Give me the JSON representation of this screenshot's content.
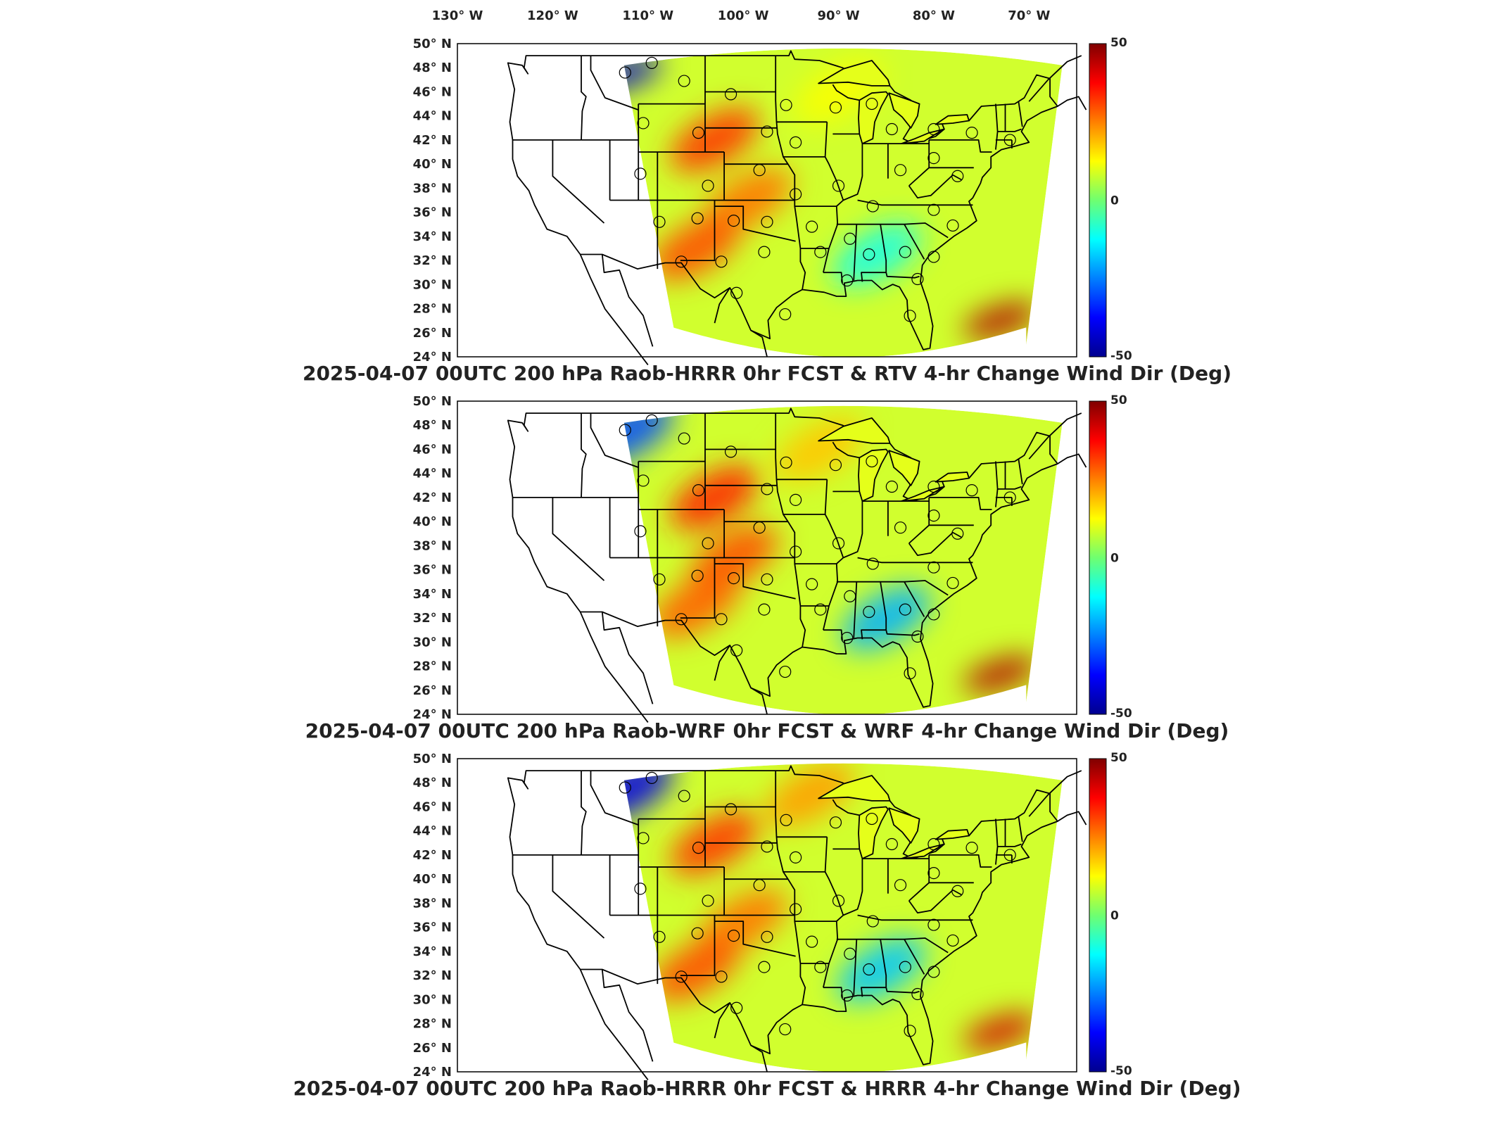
{
  "figure": {
    "lon_labels": [
      "130",
      "120",
      "110",
      "100",
      "90",
      "80",
      "70"
    ],
    "lon_suffix": "W",
    "lat_suffix": "N",
    "degree_symbol": "°"
  },
  "chart_data": [
    {
      "type": "heatmap",
      "title": "2025-04-07 00UTC 200 hPa Raob-HRRR 0hr FCST & RTV 4-hr Change Wind Dir (Deg)",
      "xlabel": "",
      "ylabel": "",
      "x_ticks": [
        "130° W",
        "120° W",
        "110° W",
        "100° W",
        "90° W",
        "80° W",
        "70° W"
      ],
      "y_ticks": [
        "50° N",
        "48° N",
        "46° N",
        "44° N",
        "42° N",
        "40° N",
        "38° N",
        "36° N",
        "34° N",
        "32° N",
        "30° N",
        "28° N",
        "26° N",
        "24° N"
      ],
      "xlim": [
        -130,
        -65
      ],
      "ylim": [
        24,
        50
      ],
      "colorbar": {
        "min": -50,
        "max": 50,
        "tick_labels": [
          "50",
          "0",
          "-50"
        ],
        "colormap": "jet"
      },
      "features": [
        {
          "lon": -103,
          "lat": 42,
          "value": 32
        },
        {
          "lon": -99.5,
          "lat": 37,
          "value": 26
        },
        {
          "lon": -105,
          "lat": 33,
          "value": 30
        },
        {
          "lon": -112.5,
          "lat": 47.5,
          "value": -42
        },
        {
          "lon": -73,
          "lat": 27.2,
          "value": 45
        },
        {
          "lon": -86,
          "lat": 32.5,
          "value": -10
        },
        {
          "lon": -90,
          "lat": 46,
          "value": 12
        }
      ],
      "grid": false
    },
    {
      "type": "heatmap",
      "title": "2025-04-07 00UTC 200 hPa Raob-WRF 0hr FCST & WRF 4-hr Change Wind Dir (Deg)",
      "xlabel": "",
      "ylabel": "",
      "x_ticks": [
        "130° W",
        "120° W",
        "110° W",
        "100° W",
        "90° W",
        "80° W",
        "70° W"
      ],
      "y_ticks": [
        "50° N",
        "48° N",
        "46° N",
        "44° N",
        "42° N",
        "40° N",
        "38° N",
        "36° N",
        "34° N",
        "32° N",
        "30° N",
        "28° N",
        "26° N",
        "24° N"
      ],
      "xlim": [
        -130,
        -65
      ],
      "ylim": [
        24,
        50
      ],
      "colorbar": {
        "min": -50,
        "max": 50,
        "tick_labels": [
          "50",
          "0",
          "-50"
        ],
        "colormap": "jet"
      },
      "features": [
        {
          "lon": -103,
          "lat": 42,
          "value": 34
        },
        {
          "lon": -101,
          "lat": 37,
          "value": 30
        },
        {
          "lon": -105,
          "lat": 33,
          "value": 28
        },
        {
          "lon": -112,
          "lat": 47.5,
          "value": -30
        },
        {
          "lon": -73,
          "lat": 27.5,
          "value": 45
        },
        {
          "lon": -85,
          "lat": 32,
          "value": -20
        },
        {
          "lon": -92,
          "lat": 46,
          "value": 18
        }
      ],
      "grid": false
    },
    {
      "type": "heatmap",
      "title": "2025-04-07 00UTC 200 hPa Raob-HRRR 0hr FCST & HRRR 4-hr Change Wind Dir (Deg)",
      "xlabel": "",
      "ylabel": "",
      "x_ticks": [
        "130° W",
        "120° W",
        "110° W",
        "100° W",
        "90° W",
        "80° W",
        "70° W"
      ],
      "y_ticks": [
        "50° N",
        "48° N",
        "46° N",
        "44° N",
        "42° N",
        "40° N",
        "38° N",
        "36° N",
        "34° N",
        "32° N",
        "30° N",
        "28° N",
        "26° N",
        "24° N"
      ],
      "xlim": [
        -130,
        -65
      ],
      "ylim": [
        24,
        50
      ],
      "colorbar": {
        "min": -50,
        "max": 50,
        "tick_labels": [
          "50",
          "0",
          "-50"
        ],
        "colormap": "jet"
      },
      "features": [
        {
          "lon": -103,
          "lat": 43,
          "value": 32
        },
        {
          "lon": -100,
          "lat": 36.5,
          "value": 26
        },
        {
          "lon": -105,
          "lat": 32.5,
          "value": 30
        },
        {
          "lon": -112,
          "lat": 47.5,
          "value": -40
        },
        {
          "lon": -73,
          "lat": 27.5,
          "value": 42
        },
        {
          "lon": -85.5,
          "lat": 32.5,
          "value": -18
        },
        {
          "lon": -93,
          "lat": 47,
          "value": 22
        }
      ],
      "grid": false
    }
  ],
  "stations": [
    [
      -112.4,
      47.6
    ],
    [
      -109.6,
      48.4
    ],
    [
      -106.2,
      46.9
    ],
    [
      -101.3,
      45.8
    ],
    [
      -95.5,
      44.9
    ],
    [
      -110.5,
      43.4
    ],
    [
      -104.7,
      42.6
    ],
    [
      -97.5,
      42.7
    ],
    [
      -94.5,
      41.8
    ],
    [
      -90.3,
      44.7
    ],
    [
      -86.5,
      45.0
    ],
    [
      -84.4,
      42.9
    ],
    [
      -80.0,
      42.9
    ],
    [
      -76.0,
      42.6
    ],
    [
      -72.0,
      42.0
    ],
    [
      -110.8,
      39.2
    ],
    [
      -103.7,
      38.2
    ],
    [
      -98.3,
      39.5
    ],
    [
      -94.5,
      37.5
    ],
    [
      -90.0,
      38.2
    ],
    [
      -86.4,
      36.5
    ],
    [
      -83.5,
      39.5
    ],
    [
      -80.0,
      40.5
    ],
    [
      -77.5,
      39.0
    ],
    [
      -80.0,
      36.2
    ],
    [
      -78.0,
      34.9
    ],
    [
      -108.8,
      35.2
    ],
    [
      -104.8,
      35.5
    ],
    [
      -101.0,
      35.3
    ],
    [
      -97.5,
      35.2
    ],
    [
      -92.8,
      34.8
    ],
    [
      -88.8,
      33.8
    ],
    [
      -86.8,
      32.5
    ],
    [
      -83.0,
      32.7
    ],
    [
      -80.0,
      32.3
    ],
    [
      -106.5,
      31.9
    ],
    [
      -102.3,
      31.9
    ],
    [
      -97.8,
      32.7
    ],
    [
      -91.9,
      32.7
    ],
    [
      -89.1,
      30.4
    ],
    [
      -81.7,
      30.5
    ],
    [
      -100.7,
      29.4
    ],
    [
      -95.6,
      27.8
    ],
    [
      -82.5,
      27.7
    ]
  ]
}
